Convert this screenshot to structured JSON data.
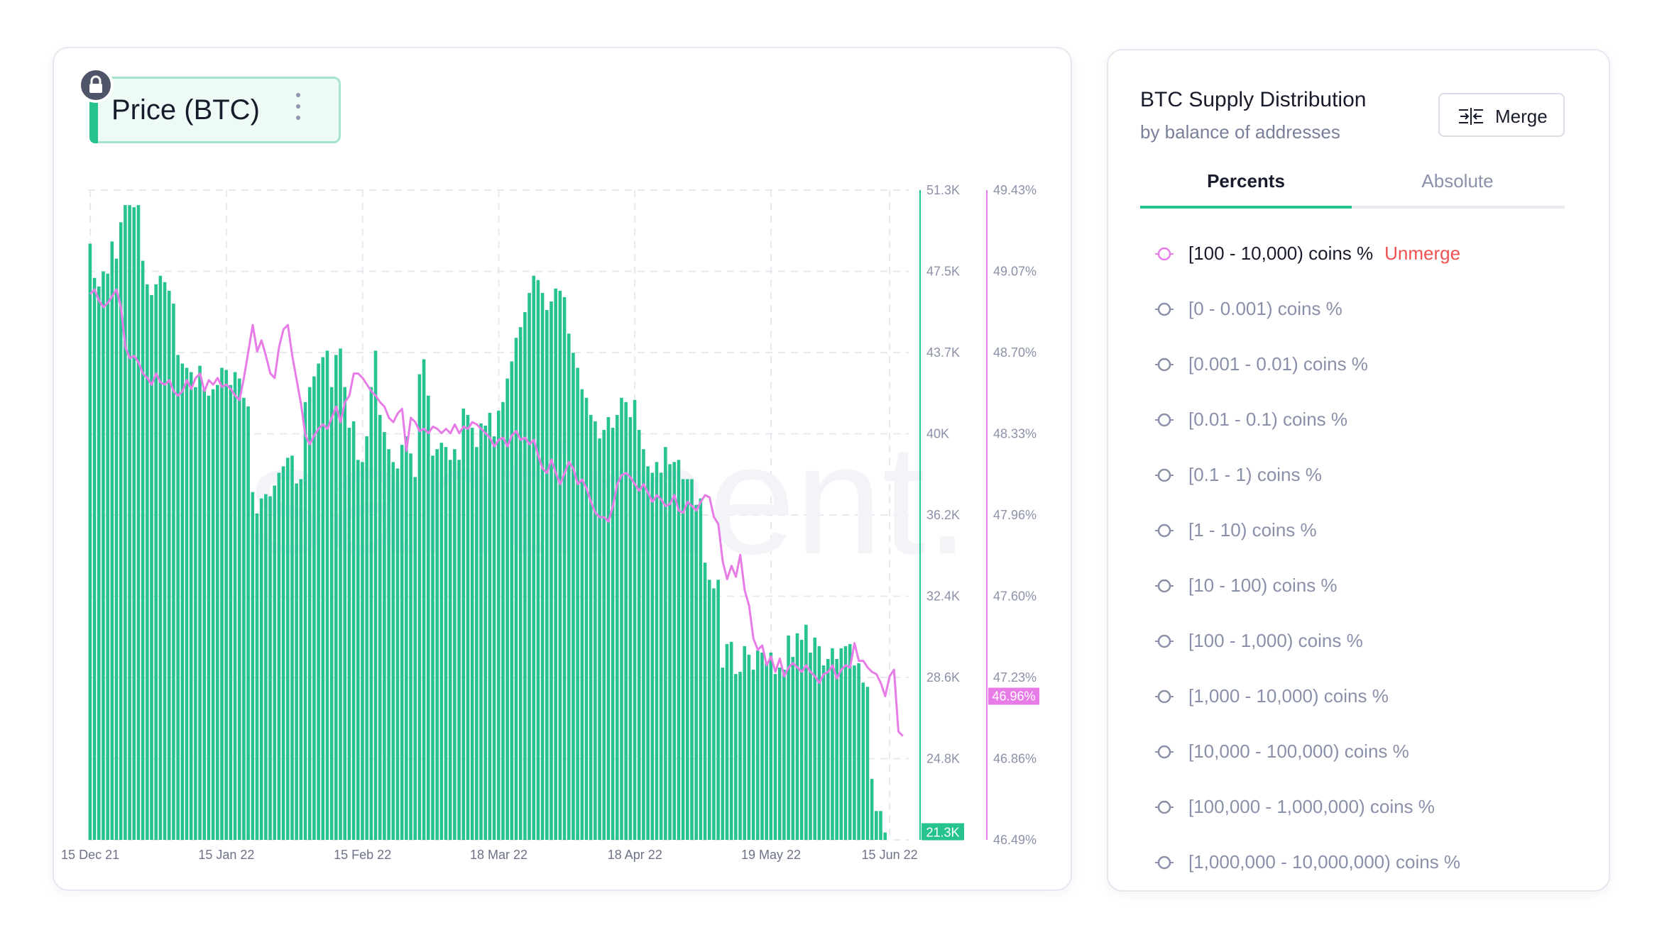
{
  "chart_panel": {
    "metric_label": "Price (BTC)",
    "watermark": "santiment."
  },
  "colors": {
    "bars": "#26c290",
    "line": "#e77ce6",
    "left_axis": "#26c290",
    "right_axis": "#e77ce6",
    "grid": "#e7e9ef",
    "red_text": "#ef5151"
  },
  "chart_data": {
    "type": "bar",
    "title": "",
    "x_ticks": [
      "15 Dec 21",
      "15 Jan 22",
      "15 Feb 22",
      "18 Mar 22",
      "18 Apr 22",
      "19 May 22",
      "15 Jun 22"
    ],
    "x_tick_index": [
      0,
      31,
      62,
      93,
      124,
      155,
      182
    ],
    "y_ticks_price": [
      "51.3K",
      "47.5K",
      "43.7K",
      "40K",
      "36.2K",
      "32.4K",
      "28.6K",
      "24.8K",
      ""
    ],
    "y_ticks_percent": [
      "49.43%",
      "49.07%",
      "48.70%",
      "48.33%",
      "47.96%",
      "47.60%",
      "47.23%",
      "46.86%",
      "46.49%"
    ],
    "price_axis": {
      "min": 20952,
      "max": 51300
    },
    "percent_axis": {
      "min": 46.49,
      "max": 49.43
    },
    "price_last_label": "21.3K",
    "percent_last_label": "46.96%",
    "series": [
      {
        "name": "Price (BTC)",
        "type": "bar",
        "values": [
          48800,
          47200,
          46800,
          47500,
          47400,
          48900,
          48100,
          49800,
          50600,
          50600,
          50500,
          50600,
          48000,
          46900,
          46400,
          46900,
          47300,
          47000,
          46600,
          46000,
          43600,
          43200,
          43000,
          42800,
          42100,
          43100,
          42000,
          41700,
          42000,
          42200,
          43000,
          42900,
          42200,
          42800,
          42500,
          41600,
          41200,
          37200,
          36200,
          36900,
          37100,
          37000,
          37500,
          38100,
          38400,
          38800,
          38900,
          37600,
          37800,
          41400,
          42100,
          42600,
          43200,
          43500,
          43800,
          42100,
          43600,
          43900,
          42100,
          40200,
          40500,
          38700,
          38600,
          39800,
          42100,
          43800,
          40800,
          40000,
          39200,
          38600,
          38300,
          39400,
          39800,
          39000,
          37900,
          42700,
          43400,
          41700,
          38900,
          39200,
          39500,
          39300,
          38700,
          39200,
          38700,
          41100,
          40800,
          40200,
          39300,
          40400,
          40300,
          40900,
          39800,
          41000,
          41400,
          42500,
          43300,
          44400,
          44900,
          45600,
          46500,
          47300,
          47100,
          46500,
          45700,
          46100,
          46700,
          46600,
          46300,
          44600,
          43700,
          43000,
          42000,
          41600,
          40800,
          40500,
          39700,
          40100,
          40700,
          40200,
          40800,
          41600,
          41400,
          40700,
          41500,
          40100,
          39200,
          38400,
          38100,
          38600,
          38100,
          39300,
          38500,
          38600,
          38700,
          37800,
          37800,
          37800,
          36600,
          36900,
          33900,
          33100,
          32700,
          33100,
          29000,
          30100,
          30200,
          28700,
          28800,
          30000,
          29600,
          28900,
          29800,
          29700,
          29200,
          29700,
          28700,
          29000,
          28900,
          30500,
          29500,
          30600,
          30300,
          31000,
          29700,
          30400,
          30000,
          29100,
          29400,
          29900,
          29400,
          29900,
          30000,
          30100,
          29100,
          29200,
          28300,
          28100,
          23800,
          22300,
          22300,
          21300
        ]
      },
      {
        "name": "[100 - 10,000) coins %",
        "type": "line",
        "values": [
          48.96,
          48.98,
          48.93,
          48.9,
          48.92,
          48.95,
          48.98,
          48.9,
          48.72,
          48.67,
          48.68,
          48.65,
          48.6,
          48.58,
          48.55,
          48.6,
          48.56,
          48.55,
          48.57,
          48.52,
          48.5,
          48.52,
          48.57,
          48.53,
          48.58,
          48.6,
          48.52,
          48.57,
          48.55,
          48.58,
          48.54,
          48.55,
          48.53,
          48.5,
          48.48,
          48.58,
          48.7,
          48.82,
          48.7,
          48.75,
          48.68,
          48.6,
          48.58,
          48.72,
          48.8,
          48.82,
          48.68,
          48.57,
          48.46,
          48.32,
          48.28,
          48.32,
          48.35,
          48.37,
          48.35,
          48.4,
          48.45,
          48.38,
          48.47,
          48.5,
          48.6,
          48.6,
          48.58,
          48.55,
          48.52,
          48.5,
          48.47,
          48.45,
          48.4,
          48.38,
          48.42,
          48.44,
          48.25,
          48.4,
          48.38,
          48.34,
          48.35,
          48.33,
          48.36,
          48.35,
          48.33,
          48.35,
          48.33,
          48.37,
          48.33,
          48.36,
          48.35,
          48.38,
          48.37,
          48.35,
          48.33,
          48.31,
          48.27,
          48.3,
          48.31,
          48.27,
          48.32,
          48.34,
          48.3,
          48.31,
          48.28,
          48.3,
          48.23,
          48.17,
          48.15,
          48.21,
          48.15,
          48.1,
          48.15,
          48.2,
          48.17,
          48.1,
          48.12,
          48.08,
          48.02,
          47.97,
          47.95,
          47.95,
          47.93,
          48.0,
          48.1,
          48.14,
          48.15,
          48.13,
          48.1,
          48.07,
          48.1,
          48.06,
          48.02,
          48.05,
          48.03,
          48.0,
          48.01,
          48.05,
          47.98,
          47.97,
          48.02,
          48.0,
          47.98,
          48.02,
          48.05,
          48.04,
          47.95,
          47.92,
          47.75,
          47.67,
          47.73,
          47.68,
          47.78,
          47.62,
          47.55,
          47.4,
          47.35,
          47.37,
          47.28,
          47.32,
          47.25,
          47.31,
          47.23,
          47.27,
          47.29,
          47.27,
          47.25,
          47.28,
          47.25,
          47.23,
          47.2,
          47.24,
          47.25,
          47.28,
          47.22,
          47.26,
          47.28,
          47.27,
          47.38,
          47.3,
          47.3,
          47.27,
          47.25,
          47.24,
          47.2,
          47.14,
          47.23,
          47.26,
          46.98,
          46.96
        ]
      }
    ]
  },
  "distribution_panel": {
    "title": "BTC Supply Distribution",
    "subtitle": "by balance of addresses",
    "merge_label": "Merge",
    "tabs": [
      {
        "label": "Percents",
        "active": true
      },
      {
        "label": "Absolute",
        "active": false
      }
    ],
    "unmerge_label": "Unmerge",
    "items": [
      {
        "label": "[100 - 10,000) coins %",
        "selected": true,
        "icon": "radio-circle-icon"
      },
      {
        "label": "[0 - 0.001) coins %",
        "selected": false,
        "icon": "radio-circle-icon"
      },
      {
        "label": "[0.001 - 0.01) coins %",
        "selected": false,
        "icon": "radio-circle-icon"
      },
      {
        "label": "[0.01 - 0.1) coins %",
        "selected": false,
        "icon": "radio-circle-icon"
      },
      {
        "label": "[0.1 - 1) coins %",
        "selected": false,
        "icon": "radio-circle-icon"
      },
      {
        "label": "[1 - 10) coins %",
        "selected": false,
        "icon": "radio-circle-icon"
      },
      {
        "label": "[10 - 100) coins %",
        "selected": false,
        "icon": "radio-circle-icon"
      },
      {
        "label": "[100 - 1,000) coins %",
        "selected": false,
        "icon": "radio-circle-icon"
      },
      {
        "label": "[1,000 - 10,000) coins %",
        "selected": false,
        "icon": "radio-circle-icon"
      },
      {
        "label": "[10,000 - 100,000) coins %",
        "selected": false,
        "icon": "radio-circle-icon"
      },
      {
        "label": "[100,000 - 1,000,000) coins %",
        "selected": false,
        "icon": "radio-circle-icon"
      },
      {
        "label": "[1,000,000 - 10,000,000) coins %",
        "selected": false,
        "icon": "radio-circle-icon"
      }
    ]
  }
}
